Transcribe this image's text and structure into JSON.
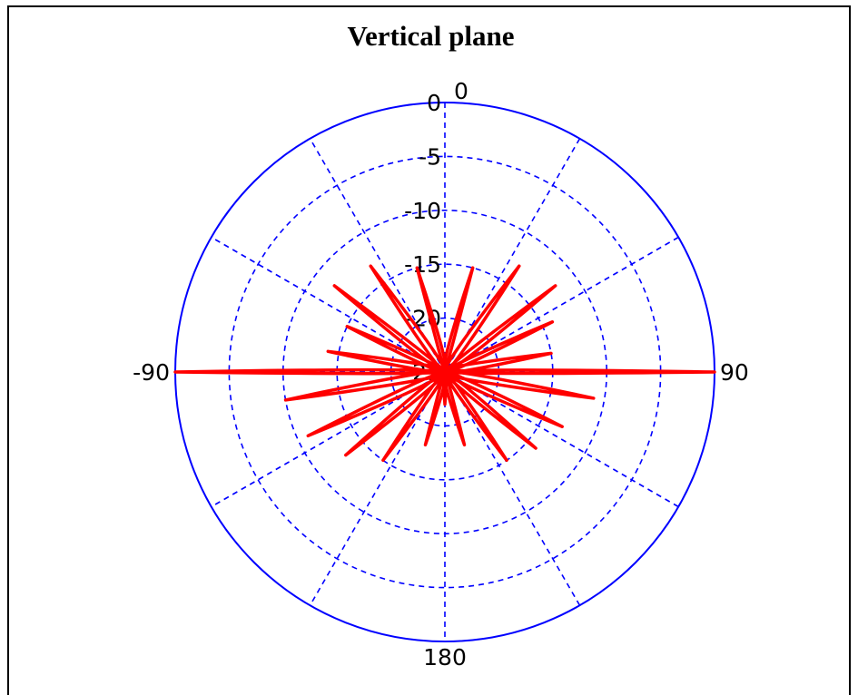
{
  "chart_data": {
    "type": "polar",
    "title": "Vertical plane",
    "angle_labels": [
      {
        "angle": 0,
        "text": "0"
      },
      {
        "angle": 90,
        "text": "90"
      },
      {
        "angle": 180,
        "text": "180"
      },
      {
        "angle": -90,
        "text": "-90"
      }
    ],
    "radial_ticks": [
      "0",
      "-5",
      "-10",
      "-15",
      "-20",
      "-25"
    ],
    "r_range_db": [
      -25,
      0
    ],
    "spoke_step_deg": 30,
    "grid": "dashed",
    "colors": {
      "grid": "#0000ff",
      "series": "#ff0000",
      "outer_circle": "#0000ff"
    },
    "series": {
      "angles_deg": [
        -95,
        -90,
        -85,
        -80,
        -70,
        -65,
        -60,
        -52,
        -45,
        -35,
        -25,
        -15,
        -5,
        0,
        5,
        15,
        25,
        35,
        45,
        52,
        60,
        65,
        70,
        80,
        85,
        90,
        95,
        100,
        110,
        115,
        125,
        130,
        135,
        145,
        155,
        165,
        175,
        180,
        -175,
        -165,
        -155,
        -145,
        -135,
        -130,
        -125,
        -115,
        -110,
        -100
      ],
      "gain_db": [
        -25,
        0,
        -25,
        -14,
        -25,
        -15,
        -25,
        -12,
        -25,
        -13,
        -25,
        -15,
        -25,
        -24,
        -25,
        -15,
        -25,
        -13,
        -25,
        -12,
        -25,
        -14,
        -25,
        -15,
        -25,
        0,
        -25,
        -11,
        -25,
        -13,
        -25,
        -14,
        -25,
        -15,
        -25,
        -18,
        -25,
        -22,
        -25,
        -18,
        -25,
        -15,
        -25,
        -13,
        -25,
        -11,
        -25,
        -10
      ]
    }
  }
}
